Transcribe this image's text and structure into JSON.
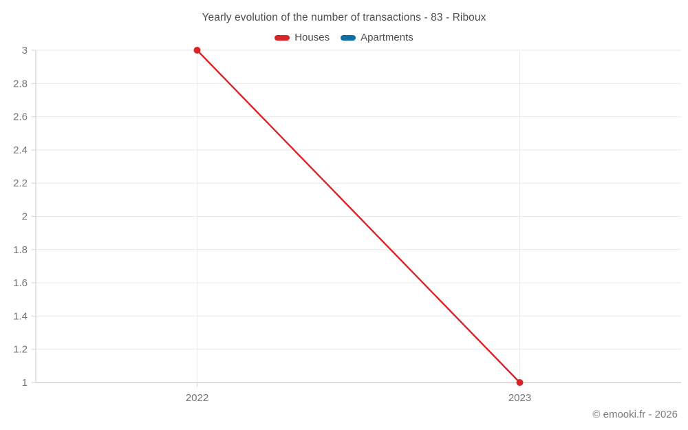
{
  "chart_data": {
    "type": "line",
    "title": "Yearly evolution of the number of transactions - 83 - Riboux",
    "categories": [
      "2022",
      "2023"
    ],
    "series": [
      {
        "name": "Houses",
        "color": "#d92429",
        "values": [
          3,
          1
        ]
      },
      {
        "name": "Apartments",
        "color": "#0f6fa3",
        "values": [
          null,
          null
        ]
      }
    ],
    "xlabel": "",
    "ylabel": "",
    "ylim": [
      1,
      3
    ],
    "ytick_step": 0.2,
    "yticks": [
      3,
      2.8,
      2.6,
      2.4,
      2.2,
      2,
      1.8,
      1.6,
      1.4,
      1.2,
      1
    ],
    "grid": true,
    "legend_position": "top"
  },
  "footer": {
    "credit": "© emooki.fr - 2026"
  },
  "colors": {
    "houses": "#d92429",
    "apartments": "#0f6fa3",
    "gridline": "#e9e9e9",
    "axis_line": "#d2d2d2",
    "tick_label": "#757575",
    "title_text": "#4d4d4d",
    "footer_text": "#7b7b7b",
    "background": "#ffffff"
  }
}
